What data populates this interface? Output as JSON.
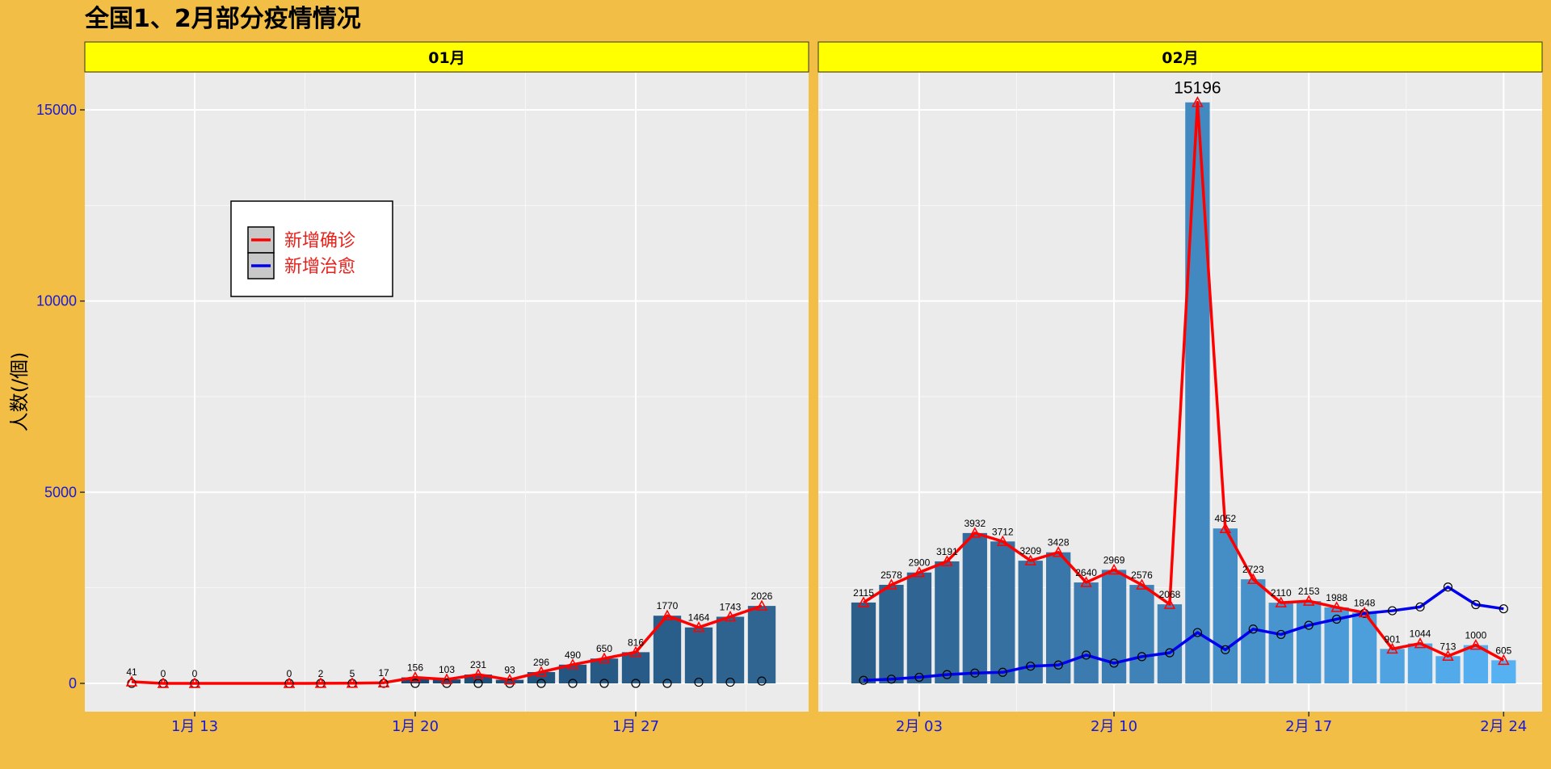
{
  "title": "全国1、2月部分疫情情况",
  "chart_data": {
    "type": "bar",
    "title": "全国1、2月部分疫情情况",
    "ylabel": "人数(/個)",
    "xlabel": "",
    "ylim": [
      0,
      16000
    ],
    "yticks": [
      0,
      5000,
      10000,
      15000
    ],
    "grid": true,
    "legend": {
      "placement": "top-left inside",
      "entries": [
        {
          "name": "新增确诊",
          "color": "#FF0000"
        },
        {
          "name": "新增治愈",
          "color": "#0000EE"
        }
      ]
    },
    "panels": [
      {
        "strip": "01月",
        "x_ticks": [
          {
            "day": 13,
            "label": "1月 13"
          },
          {
            "day": 20,
            "label": "1月 20"
          },
          {
            "day": 27,
            "label": "1月 27"
          }
        ],
        "x": [
          11,
          12,
          13,
          16,
          17,
          18,
          19,
          20,
          21,
          22,
          23,
          24,
          25,
          26,
          27,
          28,
          29,
          30,
          31
        ],
        "confirmed": [
          41,
          0,
          0,
          0,
          2,
          5,
          17,
          156,
          103,
          231,
          93,
          296,
          490,
          650,
          816,
          1770,
          1464,
          1743,
          2026
        ],
        "cured": [
          0,
          0,
          0,
          0,
          0,
          0,
          0,
          0,
          0,
          0,
          0,
          0,
          0,
          0,
          0,
          0,
          30,
          30,
          60
        ],
        "bars_x": [
          20,
          21,
          22,
          23,
          24,
          25,
          26,
          27,
          28,
          29,
          30,
          31
        ],
        "bars": [
          156,
          103,
          231,
          93,
          296,
          490,
          650,
          816,
          1770,
          1464,
          1743,
          2026
        ]
      },
      {
        "strip": "02月",
        "x_ticks": [
          {
            "day": 3,
            "label": "2月 03"
          },
          {
            "day": 10,
            "label": "2月 10"
          },
          {
            "day": 17,
            "label": "2月 17"
          },
          {
            "day": 24,
            "label": "2月 24"
          }
        ],
        "x": [
          1,
          2,
          3,
          4,
          5,
          6,
          7,
          8,
          9,
          10,
          11,
          12,
          13,
          14,
          15,
          16,
          17,
          18,
          19,
          20,
          21,
          22,
          23,
          24
        ],
        "confirmed": [
          2115,
          2578,
          2900,
          3191,
          3932,
          3712,
          3209,
          3428,
          2640,
          2969,
          2576,
          2068,
          15196,
          4052,
          2723,
          2110,
          2153,
          1988,
          1848,
          901,
          1044,
          713,
          1000,
          605
        ],
        "cured": [
          80,
          110,
          160,
          230,
          270,
          290,
          450,
          480,
          740,
          530,
          700,
          800,
          1330,
          880,
          1420,
          1280,
          1520,
          1680,
          1830,
          1900,
          2000,
          2520,
          2060,
          1950
        ],
        "bars_x": [
          1,
          2,
          3,
          4,
          5,
          6,
          7,
          8,
          9,
          10,
          11,
          12,
          13,
          14,
          15,
          16,
          17,
          18,
          19,
          20,
          21,
          22,
          23,
          24
        ],
        "bars": [
          2115,
          2578,
          2900,
          3191,
          3932,
          3712,
          3209,
          3428,
          2640,
          2969,
          2576,
          2068,
          15196,
          4052,
          2723,
          2110,
          2153,
          1988,
          1848,
          901,
          1044,
          713,
          1000,
          605
        ]
      }
    ]
  }
}
